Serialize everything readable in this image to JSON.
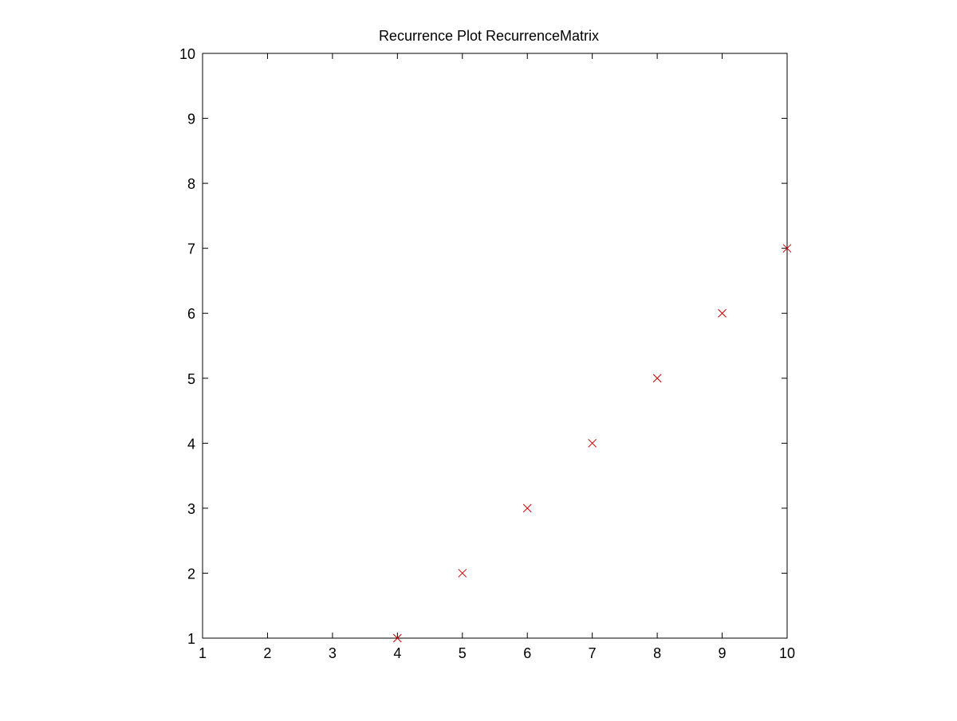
{
  "chart_data": {
    "type": "scatter",
    "title": "Recurrence Plot RecurrenceMatrix",
    "xlabel": "",
    "ylabel": "",
    "xlim": [
      1,
      10
    ],
    "ylim": [
      1,
      10
    ],
    "xticks": [
      1,
      2,
      3,
      4,
      5,
      6,
      7,
      8,
      9,
      10
    ],
    "yticks": [
      1,
      2,
      3,
      4,
      5,
      6,
      7,
      8,
      9,
      10
    ],
    "grid": false,
    "marker": "x",
    "color": "#cc0000",
    "points": [
      {
        "x": 4,
        "y": 1
      },
      {
        "x": 5,
        "y": 2
      },
      {
        "x": 6,
        "y": 3
      },
      {
        "x": 7,
        "y": 4
      },
      {
        "x": 8,
        "y": 5
      },
      {
        "x": 9,
        "y": 6
      },
      {
        "x": 10,
        "y": 7
      }
    ]
  }
}
